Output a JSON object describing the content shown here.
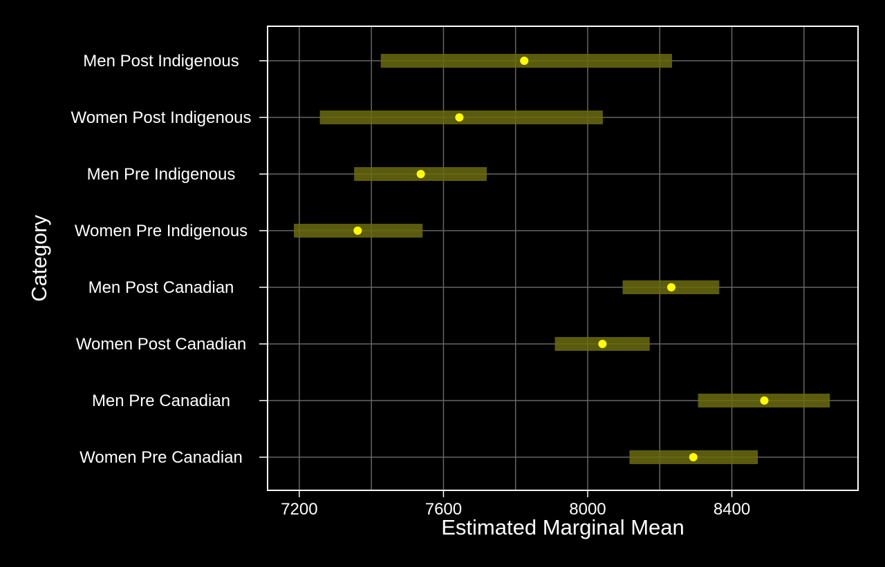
{
  "chart_data": {
    "type": "scatter",
    "title": "",
    "xlabel": "Estimated Marginal Mean",
    "ylabel": "Category",
    "xlim": [
      7112,
      8750
    ],
    "xticks": [
      7200,
      7600,
      8000,
      8400
    ],
    "xtick_labels": [
      "7200",
      "7600",
      "8000",
      "8400"
    ],
    "grid": true,
    "categories": [
      "Men Post Indigenous",
      "Women Post Indigenous",
      "Men Pre Indigenous",
      "Women Pre Indigenous",
      "Men Post Canadian",
      "Women Post Canadian",
      "Men Pre Canadian",
      "Women Pre Canadian"
    ],
    "points": [
      {
        "category": "Men Post Indigenous",
        "estimate": 7824,
        "lower": 7426,
        "upper": 8234
      },
      {
        "category": "Women Post Indigenous",
        "estimate": 7644,
        "lower": 7257,
        "upper": 8042
      },
      {
        "category": "Men Pre Indigenous",
        "estimate": 7537,
        "lower": 7352,
        "upper": 7720
      },
      {
        "category": "Women Pre Indigenous",
        "estimate": 7362,
        "lower": 7185,
        "upper": 7542
      },
      {
        "category": "Men Post Canadian",
        "estimate": 8232,
        "lower": 8097,
        "upper": 8365
      },
      {
        "category": "Women Post Canadian",
        "estimate": 8041,
        "lower": 7909,
        "upper": 8172
      },
      {
        "category": "Men Pre Canadian",
        "estimate": 8490,
        "lower": 8306,
        "upper": 8672
      },
      {
        "category": "Women Pre Canadian",
        "estimate": 8293,
        "lower": 8116,
        "upper": 8472
      }
    ],
    "colors": {
      "background": "#000000",
      "panel_border": "#ffffff",
      "grid": "#666666",
      "point": "#ffff00",
      "interval": "#6b6b10",
      "text": "#ffffff"
    }
  }
}
